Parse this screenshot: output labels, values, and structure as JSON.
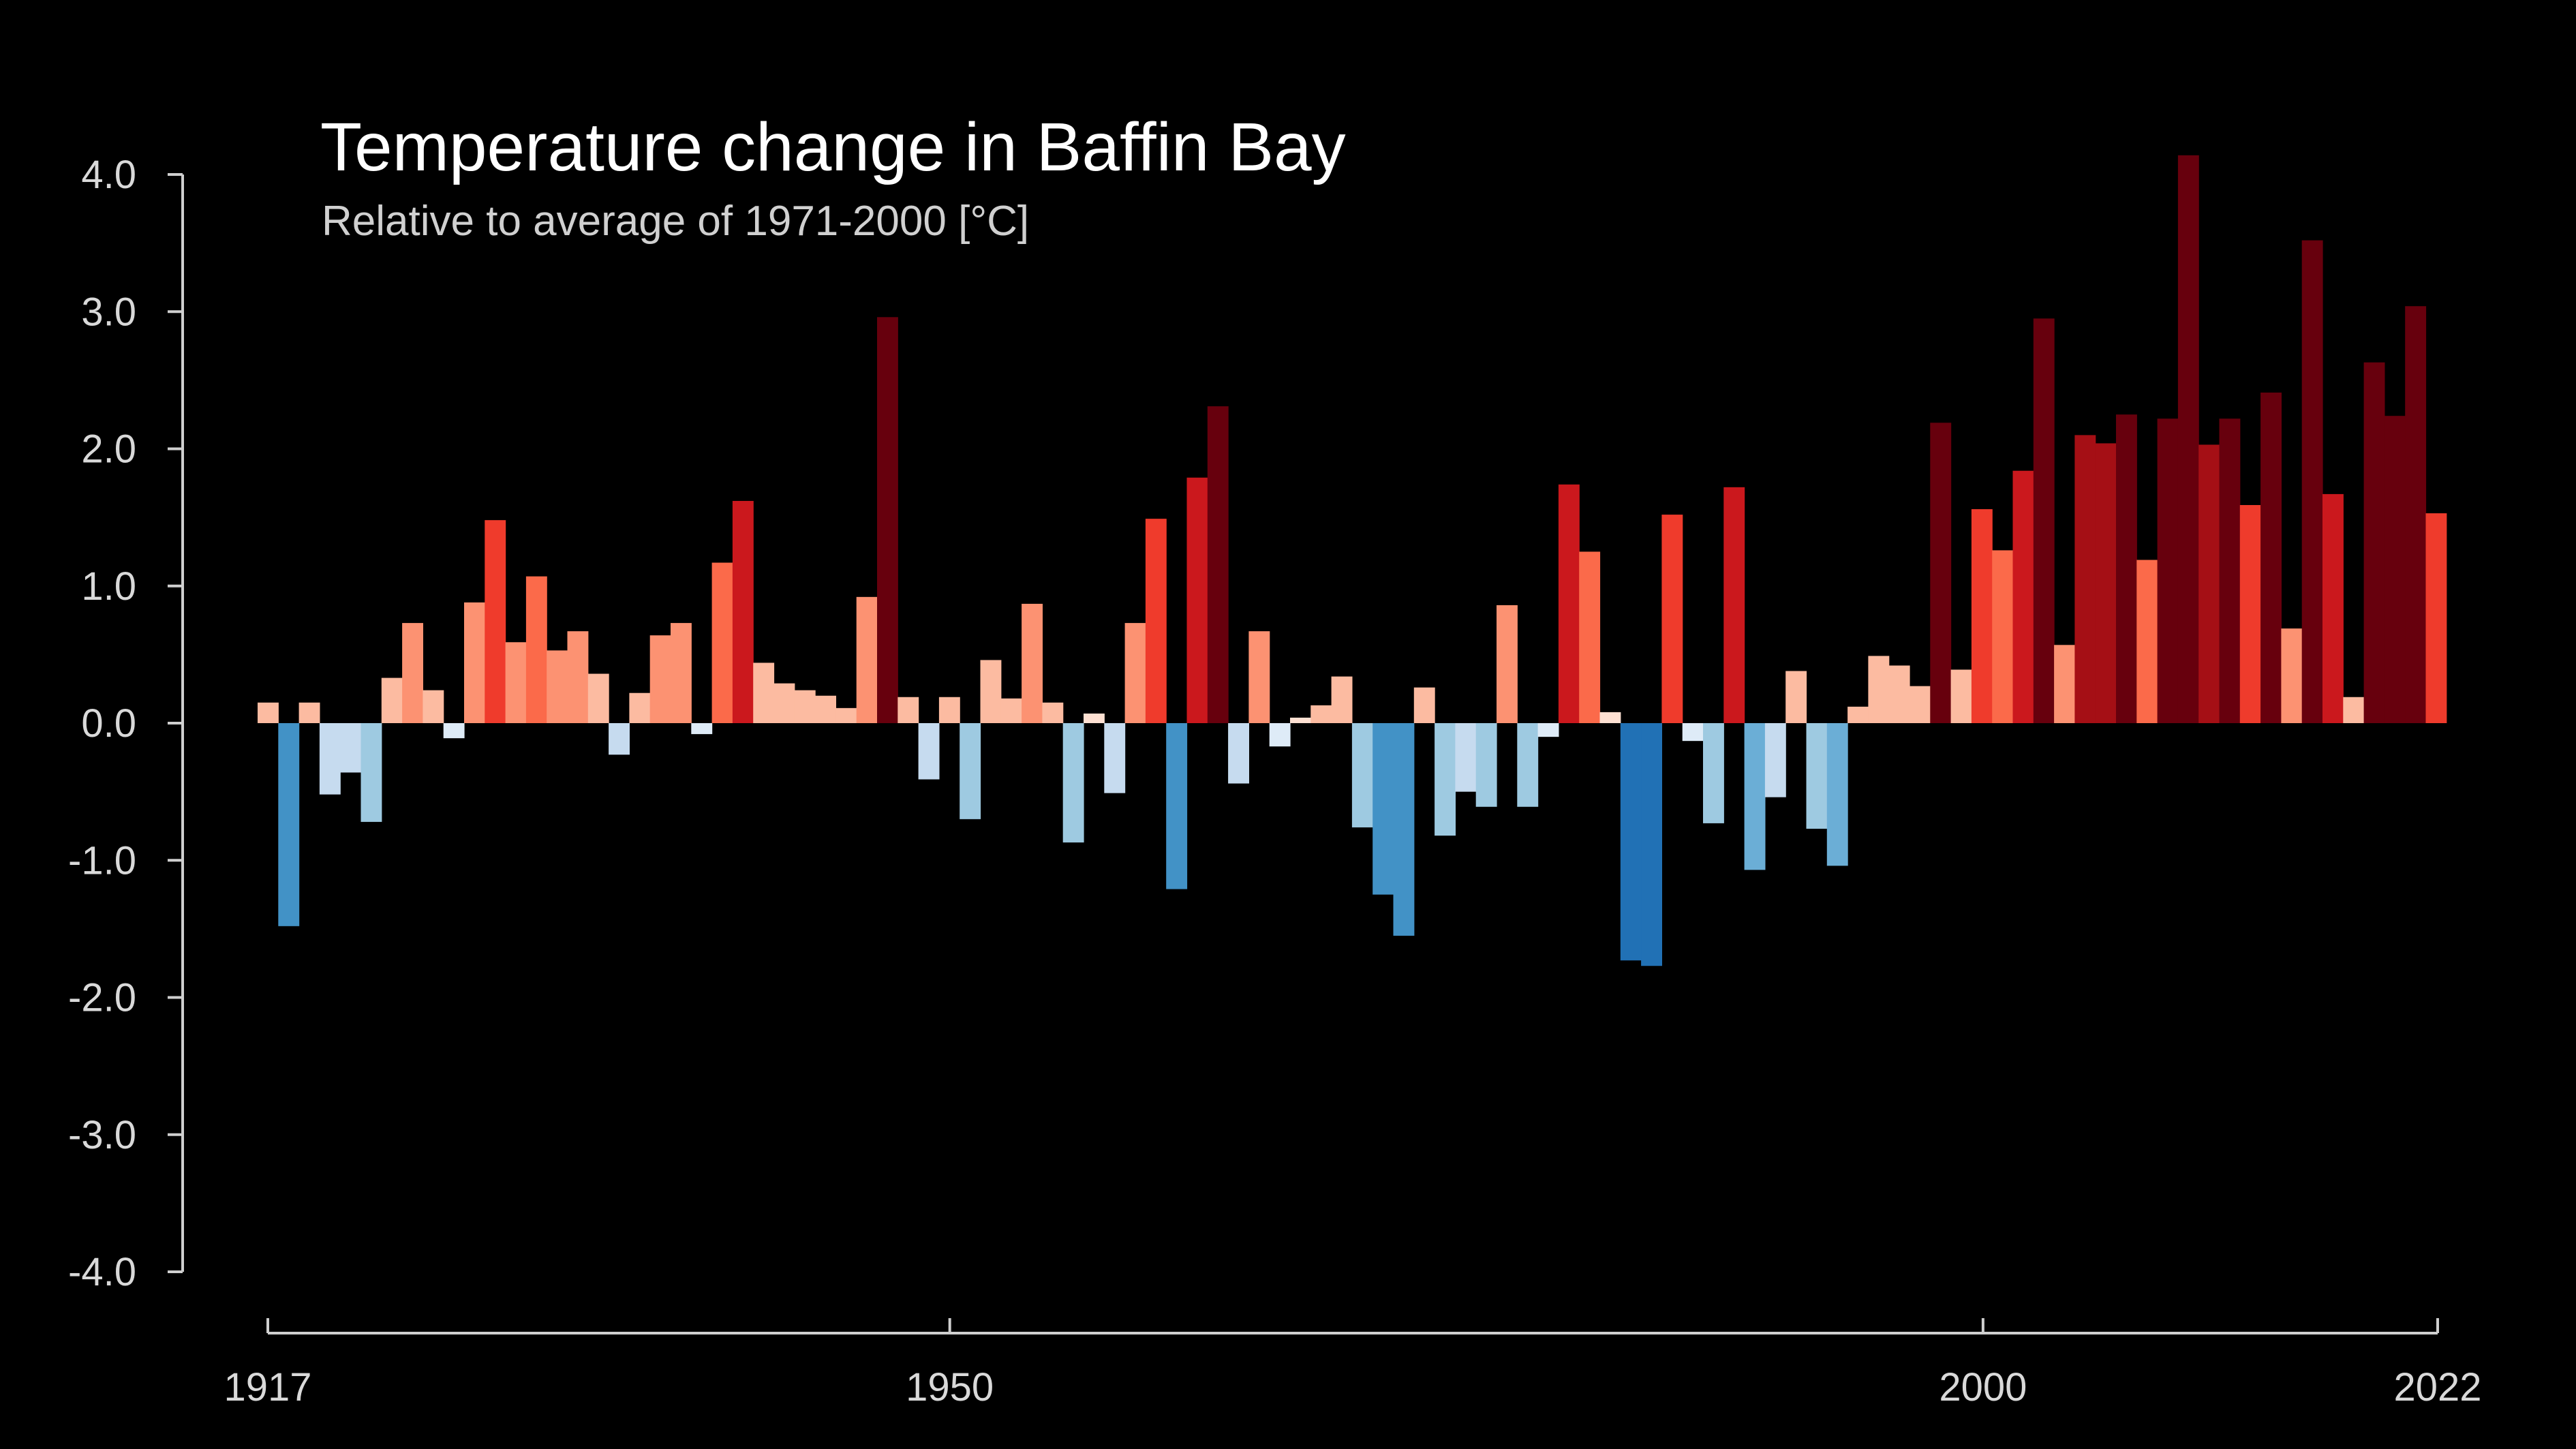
{
  "chart_data": {
    "type": "bar",
    "title": "Temperature change in Baffin Bay",
    "subtitle": "Relative to average of 1971-2000  [°C]",
    "xlabel": "",
    "ylabel": "",
    "ylim": [
      -4.0,
      4.0
    ],
    "yticks": [
      4.0,
      3.0,
      2.0,
      1.0,
      0.0,
      -1.0,
      -2.0,
      -3.0,
      -4.0
    ],
    "ytick_labels": [
      "4.0",
      "3.0",
      "2.0",
      "1.0",
      "0.0",
      "-1.0",
      "-2.0",
      "-3.0",
      "-4.0"
    ],
    "xticks": [
      1917,
      1950,
      2000,
      2022
    ],
    "xtick_labels": [
      "1917",
      "1950",
      "2000",
      "2022"
    ],
    "xlim": [
      1917,
      2022
    ],
    "grid": false,
    "categories": [
      1917,
      1918,
      1919,
      1920,
      1921,
      1922,
      1923,
      1924,
      1925,
      1926,
      1927,
      1928,
      1929,
      1930,
      1931,
      1932,
      1933,
      1934,
      1935,
      1936,
      1937,
      1938,
      1939,
      1940,
      1941,
      1942,
      1943,
      1944,
      1945,
      1946,
      1947,
      1948,
      1949,
      1950,
      1951,
      1952,
      1953,
      1954,
      1955,
      1956,
      1957,
      1958,
      1959,
      1960,
      1961,
      1962,
      1963,
      1964,
      1965,
      1966,
      1967,
      1968,
      1969,
      1970,
      1971,
      1972,
      1973,
      1974,
      1975,
      1976,
      1977,
      1978,
      1979,
      1980,
      1981,
      1982,
      1983,
      1984,
      1985,
      1986,
      1987,
      1988,
      1989,
      1990,
      1991,
      1992,
      1993,
      1994,
      1995,
      1996,
      1997,
      1998,
      1999,
      2000,
      2001,
      2002,
      2003,
      2004,
      2005,
      2006,
      2007,
      2008,
      2009,
      2010,
      2011,
      2012,
      2013,
      2014,
      2015,
      2016,
      2017,
      2018,
      2019,
      2020,
      2021,
      2022
    ],
    "values": [
      0.15,
      -1.48,
      0.15,
      -0.52,
      -0.36,
      -0.72,
      0.33,
      0.73,
      0.24,
      -0.11,
      0.88,
      1.48,
      0.59,
      1.07,
      0.53,
      0.67,
      0.36,
      -0.23,
      0.22,
      0.64,
      0.73,
      -0.08,
      1.17,
      1.62,
      0.44,
      0.29,
      0.24,
      0.2,
      0.11,
      0.92,
      2.96,
      0.19,
      -0.41,
      0.19,
      -0.7,
      0.46,
      0.18,
      0.87,
      0.15,
      -0.87,
      0.07,
      -0.51,
      0.73,
      1.49,
      -1.21,
      1.79,
      2.31,
      -0.44,
      0.67,
      -0.17,
      0.04,
      0.13,
      0.34,
      -0.76,
      -1.25,
      -1.55,
      0.26,
      -0.82,
      -0.5,
      -0.61,
      0.86,
      -0.61,
      -0.1,
      1.74,
      1.25,
      0.08,
      -1.73,
      -1.77,
      1.52,
      -0.13,
      -0.73,
      1.72,
      -1.07,
      -0.54,
      0.38,
      -0.77,
      -1.04,
      0.12,
      0.49,
      0.42,
      0.27,
      2.19,
      0.39,
      1.56,
      1.26,
      1.84,
      2.95,
      0.57,
      2.1,
      2.04,
      2.25,
      1.19,
      2.22,
      4.14,
      2.03,
      2.22,
      1.59,
      2.41,
      0.69,
      3.52,
      1.67,
      0.19,
      2.63,
      2.24,
      3.04,
      1.53
    ],
    "colors": {
      "background": "#000000",
      "axis": "#cfcfcf",
      "text": "#d9d9d9",
      "scale": [
        "#08306b",
        "#08519c",
        "#2171b5",
        "#4292c6",
        "#6baed6",
        "#9ecae1",
        "#c6dbef",
        "#deebf7",
        "#fee0d2",
        "#fcbba1",
        "#fc9272",
        "#fb6a4a",
        "#ef3b2c",
        "#cb181d",
        "#a50f15",
        "#67000d"
      ]
    }
  }
}
